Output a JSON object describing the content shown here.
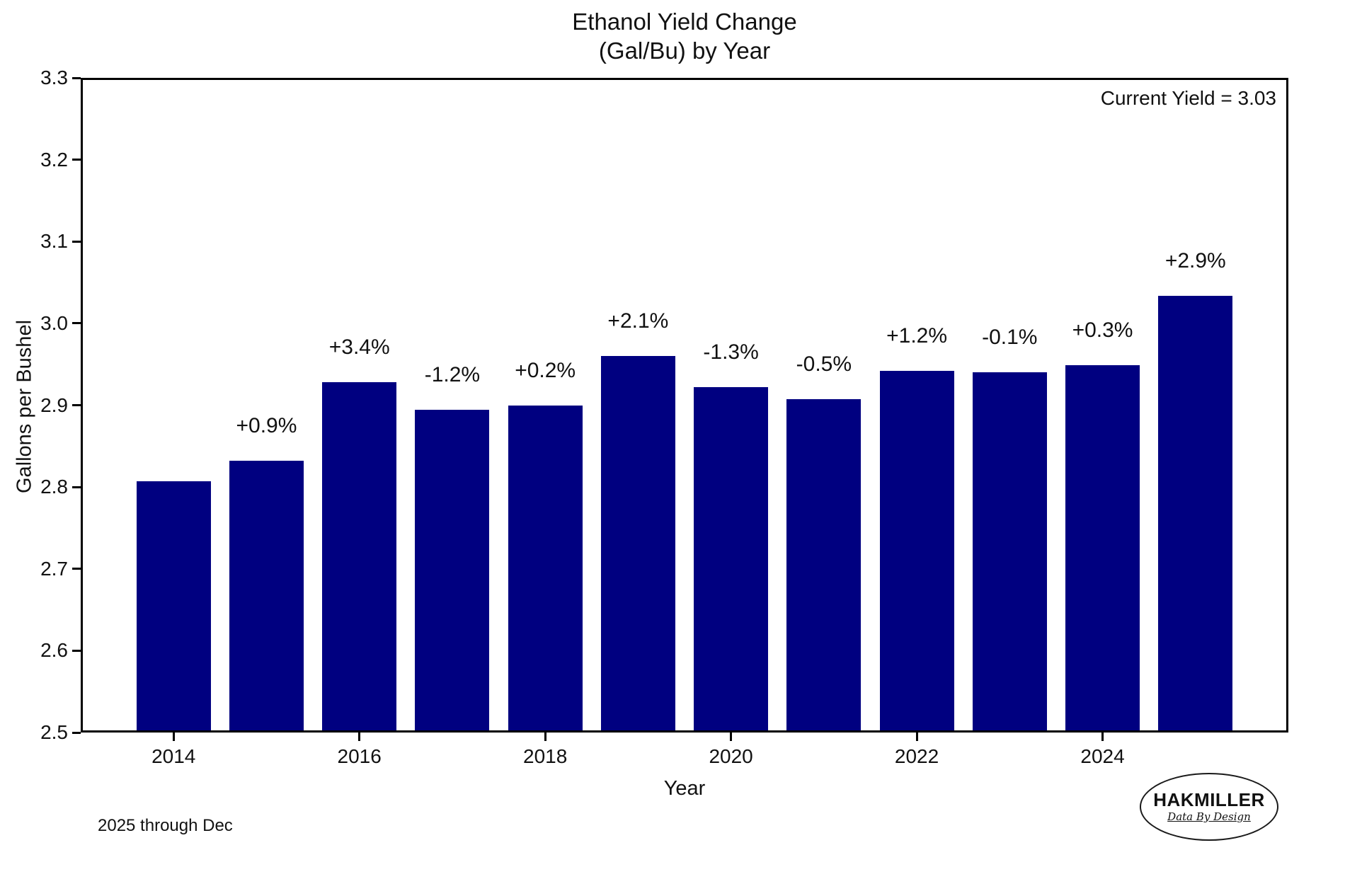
{
  "title": {
    "line1": "Ethanol Yield Change",
    "line2": "(Gal/Bu) by Year"
  },
  "annotations": {
    "current_yield": "Current Yield = 3.03",
    "footnote": "2025 through Dec"
  },
  "logo": {
    "name": "HAKMILLER",
    "tagline": "Data By Design"
  },
  "colors": {
    "bar": "#000080",
    "axis": "#000000",
    "background": "#ffffff",
    "text": "#111111"
  },
  "chart_data": {
    "type": "bar",
    "title": "Ethanol Yield Change (Gal/Bu) by Year",
    "xlabel": "Year",
    "ylabel": "Gallons per Bushel",
    "categories": [
      2014,
      2015,
      2016,
      2017,
      2018,
      2019,
      2020,
      2021,
      2022,
      2023,
      2024,
      2025
    ],
    "values": [
      2.807,
      2.832,
      2.928,
      2.894,
      2.9,
      2.96,
      2.922,
      2.907,
      2.942,
      2.94,
      2.949,
      3.034
    ],
    "bar_labels": [
      null,
      "+0.9%",
      "+3.4%",
      "-1.2%",
      "+0.2%",
      "+2.1%",
      "-1.3%",
      "-0.5%",
      "+1.2%",
      "-0.1%",
      "+0.3%",
      "+2.9%"
    ],
    "ylim": [
      2.5,
      3.3
    ],
    "xlim": [
      2013,
      2026
    ],
    "yticks": [
      "2.5",
      "2.6",
      "2.7",
      "2.8",
      "2.9",
      "3.0",
      "3.1",
      "3.2",
      "3.3"
    ],
    "xticks": [
      "2014",
      "2016",
      "2018",
      "2020",
      "2022",
      "2024"
    ],
    "bar_width_years": 0.8,
    "grid": false,
    "legend": null,
    "annotation_top_right": "Current Yield = 3.03"
  }
}
